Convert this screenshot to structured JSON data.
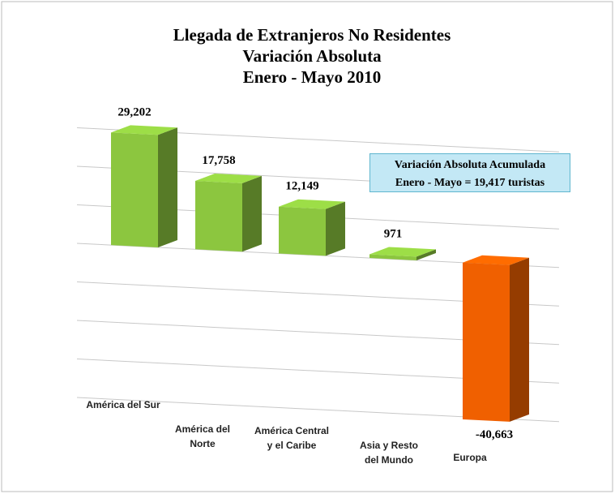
{
  "chart_data": {
    "type": "bar3d",
    "title": [
      "Llegada de Extranjeros No Residentes",
      "Variación Absoluta",
      "Enero - Mayo 2010"
    ],
    "categories": [
      "América del Sur",
      "América del Norte",
      "América Central y el Caribe",
      "Asia y Resto del Mundo",
      "Europa"
    ],
    "values": [
      29202,
      17758,
      12149,
      971,
      -40663
    ],
    "value_labels": [
      "29,202",
      "17,758",
      "12,149",
      "971",
      "-40,663"
    ],
    "colors": [
      "#8cc63f",
      "#8cc63f",
      "#8cc63f",
      "#8cc63f",
      "#f06000"
    ],
    "ylim": [
      -50000,
      30000
    ],
    "yticks": [
      -40000,
      -30000,
      -20000,
      -10000,
      0,
      10000,
      20000,
      30000
    ],
    "grid": true,
    "annotation": [
      "Variación Absoluta Acumulada",
      "Enero - Mayo = 19,417 turistas"
    ]
  }
}
